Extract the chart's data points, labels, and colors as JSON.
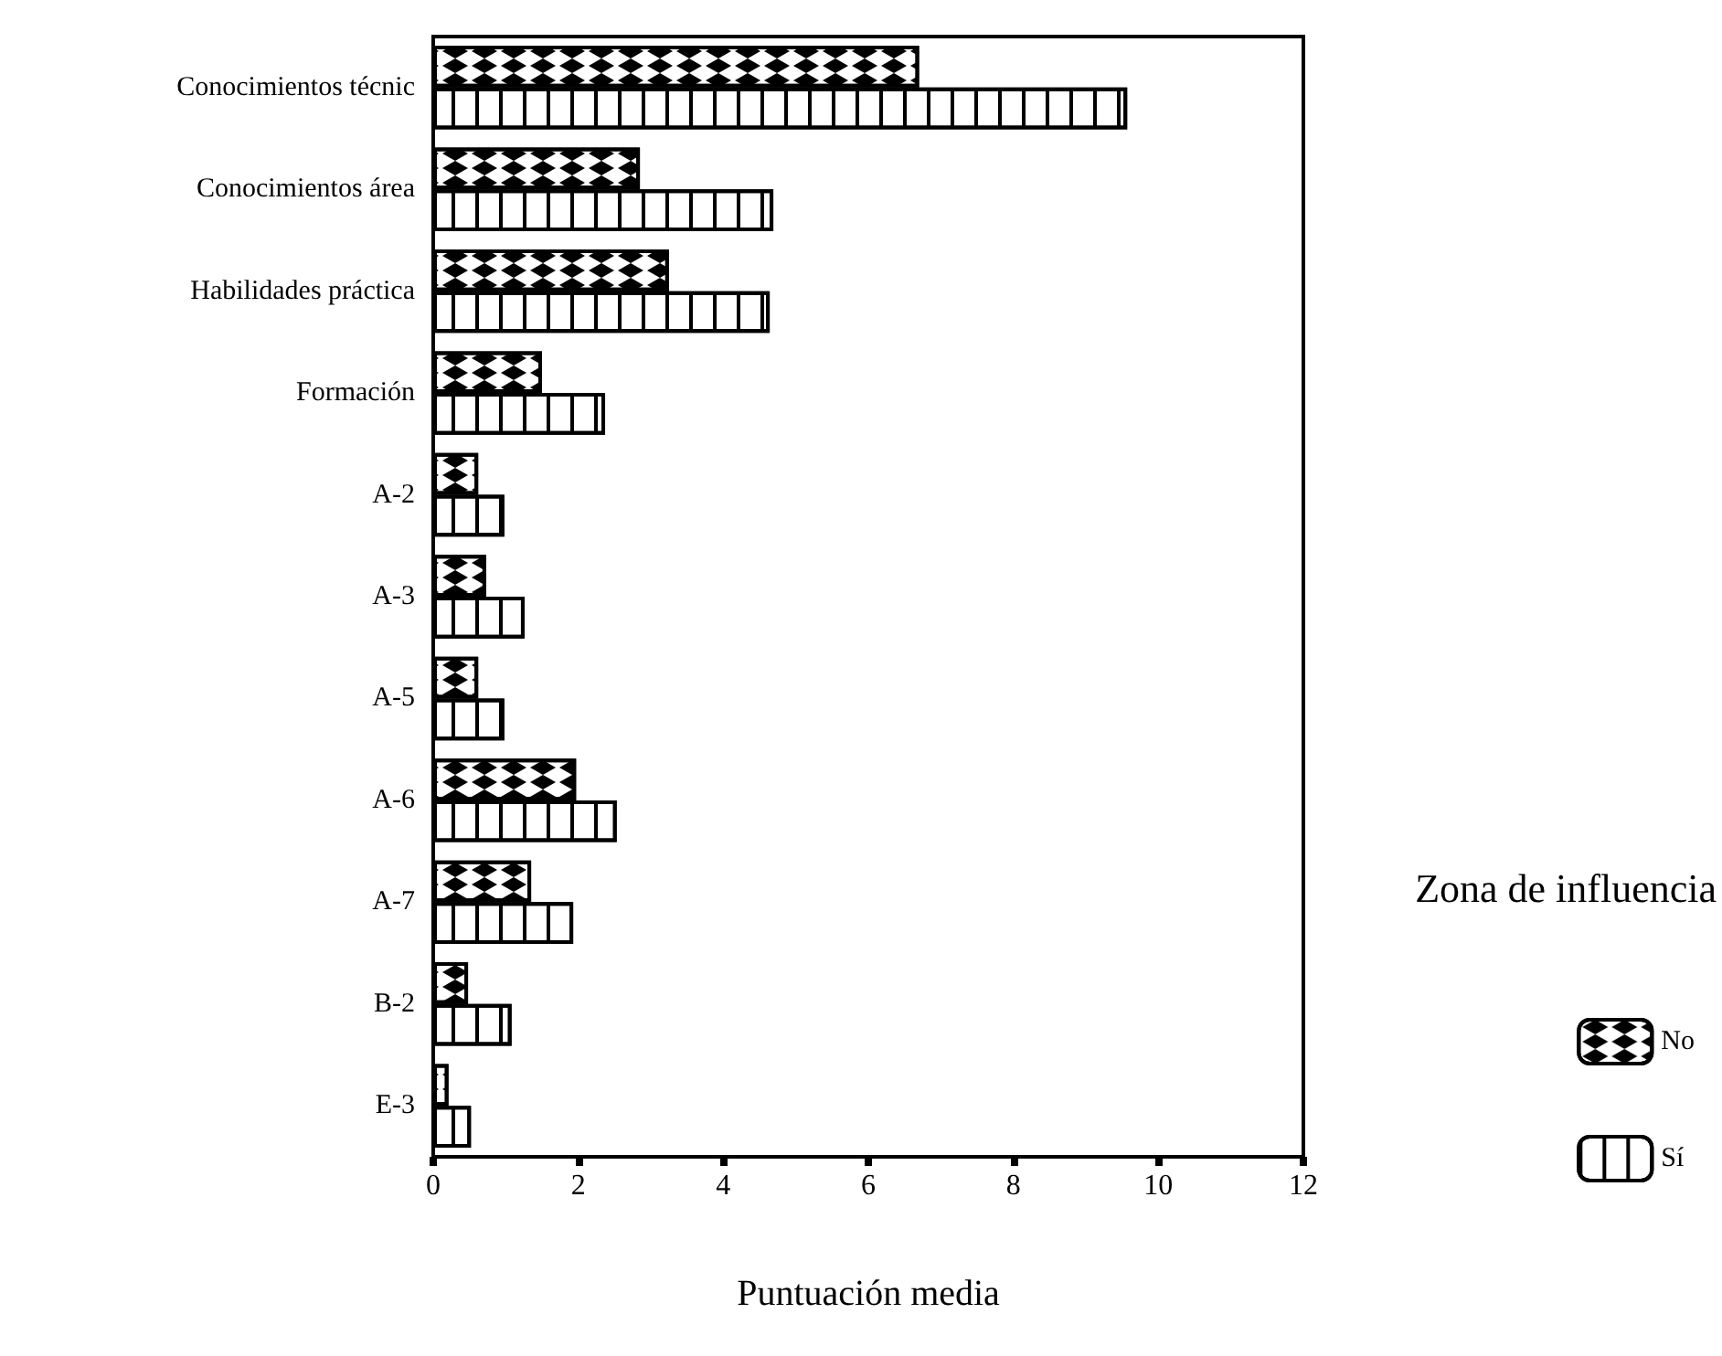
{
  "chart_data": {
    "type": "bar",
    "orientation": "horizontal",
    "categories": [
      "Conocimientos técnic",
      "Conocimientos área",
      "Habilidades práctica",
      "Formación",
      "A-2",
      "A-3",
      "A-5",
      "A-6",
      "A-7",
      "B-2",
      "E-3"
    ],
    "series": [
      {
        "name": "No",
        "color": "#ffffff",
        "values": [
          6.7,
          2.85,
          3.25,
          1.5,
          0.62,
          0.73,
          0.62,
          1.97,
          1.35,
          0.48,
          0.21
        ]
      },
      {
        "name": "Sí",
        "color": "#ffffff",
        "values": [
          9.57,
          4.69,
          4.64,
          2.37,
          0.98,
          1.26,
          0.98,
          2.53,
          1.93,
          1.08,
          0.52
        ]
      }
    ],
    "xlabel": "Puntuación media",
    "legend_title": "Zona de influencia",
    "xlim": [
      0,
      12
    ],
    "xticks": [
      0,
      2,
      4,
      6,
      8,
      10,
      12
    ],
    "grid": false,
    "legend": "right"
  }
}
